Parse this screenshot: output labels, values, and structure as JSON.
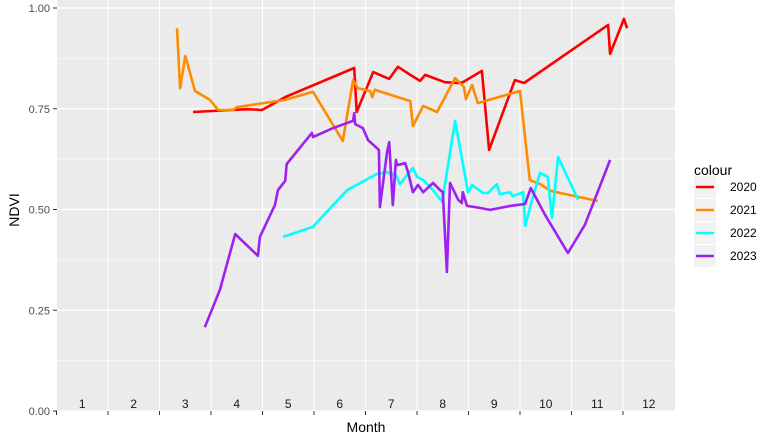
{
  "chart_data": {
    "type": "line",
    "title": "",
    "xlabel": "Month",
    "ylabel": "NDVI",
    "xlim": [
      0,
      12
    ],
    "ylim": [
      0,
      1
    ],
    "grid": true,
    "x_tick_labels": [
      "1",
      "2",
      "3",
      "4",
      "5",
      "6",
      "7",
      "8",
      "9",
      "10",
      "11",
      "12"
    ],
    "y_ticks": [
      0,
      0.25,
      0.5,
      0.75,
      1.0
    ],
    "y_tick_labels": [
      "0.00",
      "0.25",
      "0.50",
      "0.75",
      "1.00"
    ],
    "legend": {
      "title": "colour",
      "placement": "right"
    },
    "series": [
      {
        "name": "2020",
        "color": "#FF0000",
        "points": [
          [
            2.65,
            0.742
          ],
          [
            3.7,
            0.749
          ],
          [
            3.99,
            0.747
          ],
          [
            4.44,
            0.779
          ],
          [
            5.78,
            0.851
          ],
          [
            5.83,
            0.742
          ],
          [
            6.15,
            0.841
          ],
          [
            6.46,
            0.824
          ],
          [
            6.63,
            0.854
          ],
          [
            6.87,
            0.834
          ],
          [
            7.06,
            0.819
          ],
          [
            7.16,
            0.834
          ],
          [
            7.54,
            0.816
          ],
          [
            7.8,
            0.814
          ],
          [
            7.89,
            0.816
          ],
          [
            8.26,
            0.844
          ],
          [
            8.4,
            0.648
          ],
          [
            8.9,
            0.821
          ],
          [
            9.08,
            0.814
          ],
          [
            10.71,
            0.958
          ],
          [
            10.75,
            0.886
          ],
          [
            11.02,
            0.973
          ],
          [
            11.08,
            0.95
          ]
        ]
      },
      {
        "name": "2021",
        "color": "#FF8C00",
        "points": [
          [
            2.34,
            0.95
          ],
          [
            2.4,
            0.801
          ],
          [
            2.5,
            0.881
          ],
          [
            2.69,
            0.794
          ],
          [
            2.98,
            0.772
          ],
          [
            3.14,
            0.747
          ],
          [
            3.43,
            0.747
          ],
          [
            3.5,
            0.754
          ],
          [
            4.44,
            0.772
          ],
          [
            4.98,
            0.792
          ],
          [
            5.56,
            0.67
          ],
          [
            5.76,
            0.821
          ],
          [
            5.85,
            0.801
          ],
          [
            6.09,
            0.794
          ],
          [
            6.13,
            0.779
          ],
          [
            6.18,
            0.797
          ],
          [
            6.87,
            0.769
          ],
          [
            6.92,
            0.707
          ],
          [
            7.12,
            0.757
          ],
          [
            7.39,
            0.742
          ],
          [
            7.74,
            0.826
          ],
          [
            7.91,
            0.804
          ],
          [
            7.95,
            0.774
          ],
          [
            8.07,
            0.809
          ],
          [
            8.18,
            0.764
          ],
          [
            9.0,
            0.794
          ],
          [
            9.19,
            0.573
          ],
          [
            9.39,
            0.563
          ],
          [
            9.6,
            0.546
          ],
          [
            10.51,
            0.521
          ]
        ]
      },
      {
        "name": "2022",
        "color": "#00FFFF",
        "points": [
          [
            4.4,
            0.432
          ],
          [
            4.98,
            0.457
          ],
          [
            5.64,
            0.548
          ],
          [
            6.22,
            0.588
          ],
          [
            6.42,
            0.593
          ],
          [
            6.51,
            0.586
          ],
          [
            6.57,
            0.591
          ],
          [
            6.67,
            0.563
          ],
          [
            6.92,
            0.603
          ],
          [
            7.0,
            0.581
          ],
          [
            7.12,
            0.573
          ],
          [
            7.31,
            0.548
          ],
          [
            7.49,
            0.519
          ],
          [
            7.74,
            0.72
          ],
          [
            7.99,
            0.543
          ],
          [
            8.07,
            0.561
          ],
          [
            8.28,
            0.541
          ],
          [
            8.38,
            0.541
          ],
          [
            8.55,
            0.563
          ],
          [
            8.61,
            0.538
          ],
          [
            8.81,
            0.543
          ],
          [
            8.86,
            0.533
          ],
          [
            9.06,
            0.543
          ],
          [
            9.1,
            0.459
          ],
          [
            9.23,
            0.521
          ],
          [
            9.39,
            0.591
          ],
          [
            9.54,
            0.581
          ],
          [
            9.62,
            0.479
          ],
          [
            9.74,
            0.63
          ],
          [
            10.13,
            0.524
          ]
        ]
      },
      {
        "name": "2023",
        "color": "#A020F0",
        "points": [
          [
            2.88,
            0.208
          ],
          [
            3.17,
            0.3
          ],
          [
            3.47,
            0.439
          ],
          [
            3.91,
            0.385
          ],
          [
            3.95,
            0.432
          ],
          [
            4.24,
            0.511
          ],
          [
            4.3,
            0.548
          ],
          [
            4.44,
            0.571
          ],
          [
            4.47,
            0.613
          ],
          [
            4.96,
            0.69
          ],
          [
            4.98,
            0.68
          ],
          [
            5.37,
            0.702
          ],
          [
            5.76,
            0.72
          ],
          [
            5.78,
            0.739
          ],
          [
            5.8,
            0.712
          ],
          [
            5.95,
            0.702
          ],
          [
            6.05,
            0.672
          ],
          [
            6.26,
            0.648
          ],
          [
            6.28,
            0.506
          ],
          [
            6.42,
            0.643
          ],
          [
            6.46,
            0.667
          ],
          [
            6.53,
            0.511
          ],
          [
            6.59,
            0.623
          ],
          [
            6.61,
            0.61
          ],
          [
            6.77,
            0.615
          ],
          [
            6.83,
            0.591
          ],
          [
            6.92,
            0.543
          ],
          [
            7.02,
            0.561
          ],
          [
            7.12,
            0.543
          ],
          [
            7.31,
            0.566
          ],
          [
            7.45,
            0.548
          ],
          [
            7.5,
            0.543
          ],
          [
            7.58,
            0.345
          ],
          [
            7.64,
            0.566
          ],
          [
            7.8,
            0.524
          ],
          [
            7.87,
            0.516
          ],
          [
            7.89,
            0.543
          ],
          [
            7.97,
            0.509
          ],
          [
            8.22,
            0.504
          ],
          [
            8.42,
            0.499
          ],
          [
            8.81,
            0.509
          ],
          [
            9.1,
            0.514
          ],
          [
            9.21,
            0.553
          ],
          [
            9.49,
            0.486
          ],
          [
            9.93,
            0.392
          ],
          [
            10.26,
            0.462
          ],
          [
            10.75,
            0.623
          ]
        ]
      }
    ]
  }
}
